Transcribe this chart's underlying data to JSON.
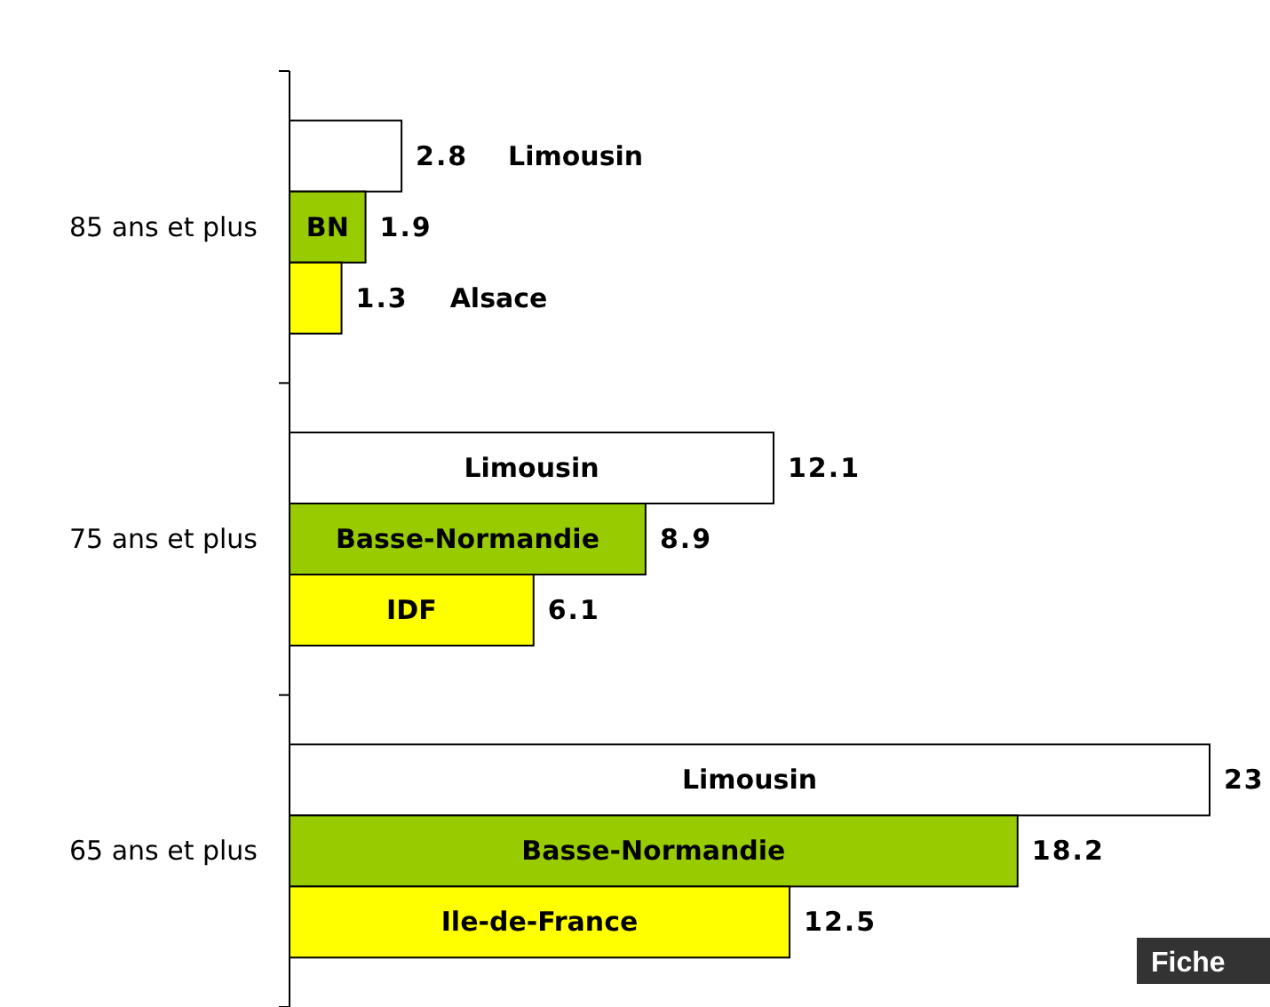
{
  "chart_data": {
    "type": "bar",
    "orientation": "horizontal",
    "categories": [
      "85 ans et plus",
      "75 ans et plus",
      "65 ans et plus"
    ],
    "series": [
      {
        "color": "#ffffff",
        "values": [
          2.8,
          12.1,
          23
        ]
      },
      {
        "color": "#99cc00",
        "values": [
          1.9,
          8.9,
          18.2
        ]
      },
      {
        "color": "#ffff00",
        "values": [
          1.3,
          6.1,
          12.5
        ]
      }
    ],
    "data_labels": true,
    "annotations": [
      "Limousin",
      "BN",
      "Alsace",
      "Limousin",
      "Basse-Normandie",
      "IDF",
      "Limousin",
      "Basse-Normandie",
      "Ile-de-France",
      "Fiche"
    ]
  }
}
